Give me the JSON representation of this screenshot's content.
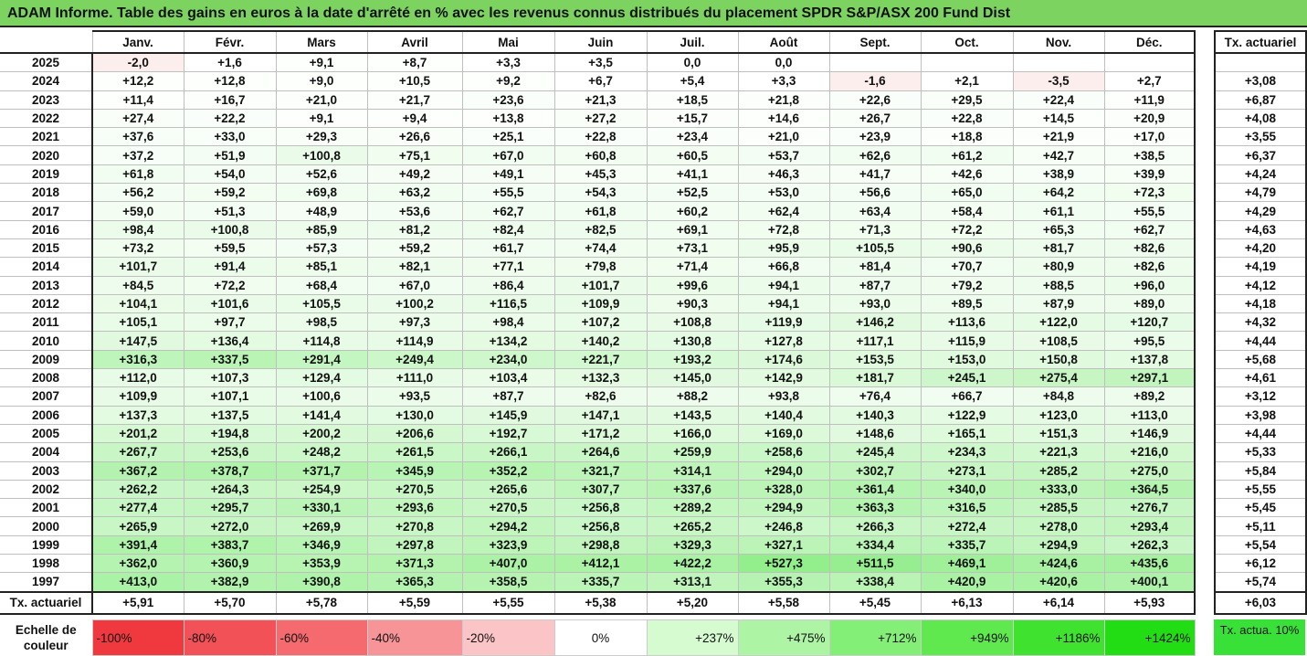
{
  "title": "ADAM Informe. Table des gains en euros à la date d'arrêté en % avec les revenus connus distribués du placement SPDR S&P/ASX 200 Fund Dist",
  "months": [
    "Janv.",
    "Févr.",
    "Mars",
    "Avril",
    "Mai",
    "Juin",
    "Juil.",
    "Août",
    "Sept.",
    "Oct.",
    "Nov.",
    "Déc."
  ],
  "side_header": "Tx. actuariel",
  "rows": [
    {
      "year": "2025",
      "values": [
        "-2,0",
        "+1,6",
        "+9,1",
        "+8,7",
        "+3,3",
        "+3,5",
        "0,0",
        "0,0",
        "",
        "",
        "",
        ""
      ],
      "tx": ""
    },
    {
      "year": "2024",
      "values": [
        "+12,2",
        "+12,8",
        "+9,0",
        "+10,5",
        "+9,2",
        "+6,7",
        "+5,4",
        "+3,3",
        "-1,6",
        "+2,1",
        "-3,5",
        "+2,7"
      ],
      "tx": "+3,08"
    },
    {
      "year": "2023",
      "values": [
        "+11,4",
        "+16,7",
        "+21,0",
        "+21,7",
        "+23,6",
        "+21,3",
        "+18,5",
        "+21,8",
        "+22,6",
        "+29,5",
        "+22,4",
        "+11,9"
      ],
      "tx": "+6,87"
    },
    {
      "year": "2022",
      "values": [
        "+27,4",
        "+22,2",
        "+9,1",
        "+9,4",
        "+13,8",
        "+27,2",
        "+15,7",
        "+14,6",
        "+26,7",
        "+22,8",
        "+14,5",
        "+20,9"
      ],
      "tx": "+4,08"
    },
    {
      "year": "2021",
      "values": [
        "+37,6",
        "+33,0",
        "+29,3",
        "+26,6",
        "+25,1",
        "+22,8",
        "+23,4",
        "+21,0",
        "+23,9",
        "+18,8",
        "+21,9",
        "+17,0"
      ],
      "tx": "+3,55"
    },
    {
      "year": "2020",
      "values": [
        "+37,2",
        "+51,9",
        "+100,8",
        "+75,1",
        "+67,0",
        "+60,8",
        "+60,5",
        "+53,7",
        "+62,6",
        "+61,2",
        "+42,7",
        "+38,5"
      ],
      "tx": "+6,37"
    },
    {
      "year": "2019",
      "values": [
        "+61,8",
        "+54,0",
        "+52,6",
        "+49,2",
        "+49,1",
        "+45,3",
        "+41,1",
        "+46,3",
        "+41,7",
        "+42,6",
        "+38,9",
        "+39,9"
      ],
      "tx": "+4,24"
    },
    {
      "year": "2018",
      "values": [
        "+56,2",
        "+59,2",
        "+69,8",
        "+63,2",
        "+55,5",
        "+54,3",
        "+52,5",
        "+53,0",
        "+56,6",
        "+65,0",
        "+64,2",
        "+72,3"
      ],
      "tx": "+4,79"
    },
    {
      "year": "2017",
      "values": [
        "+59,0",
        "+51,3",
        "+48,9",
        "+53,6",
        "+62,7",
        "+61,8",
        "+60,2",
        "+62,4",
        "+63,4",
        "+58,4",
        "+61,1",
        "+55,5"
      ],
      "tx": "+4,29"
    },
    {
      "year": "2016",
      "values": [
        "+98,4",
        "+100,8",
        "+85,9",
        "+81,2",
        "+82,4",
        "+82,5",
        "+69,1",
        "+72,8",
        "+71,3",
        "+72,2",
        "+65,3",
        "+62,7"
      ],
      "tx": "+4,63"
    },
    {
      "year": "2015",
      "values": [
        "+73,2",
        "+59,5",
        "+57,3",
        "+59,2",
        "+61,7",
        "+74,4",
        "+73,1",
        "+95,9",
        "+105,5",
        "+90,6",
        "+81,7",
        "+82,6"
      ],
      "tx": "+4,20"
    },
    {
      "year": "2014",
      "values": [
        "+101,7",
        "+91,4",
        "+85,1",
        "+82,1",
        "+77,1",
        "+79,8",
        "+71,4",
        "+66,8",
        "+81,4",
        "+70,7",
        "+80,9",
        "+82,6"
      ],
      "tx": "+4,19"
    },
    {
      "year": "2013",
      "values": [
        "+84,5",
        "+72,2",
        "+68,4",
        "+67,0",
        "+86,4",
        "+101,7",
        "+99,6",
        "+94,1",
        "+87,7",
        "+79,2",
        "+88,5",
        "+96,0"
      ],
      "tx": "+4,12"
    },
    {
      "year": "2012",
      "values": [
        "+104,1",
        "+101,6",
        "+105,5",
        "+100,2",
        "+116,5",
        "+109,9",
        "+90,3",
        "+94,1",
        "+93,0",
        "+89,5",
        "+87,9",
        "+89,0"
      ],
      "tx": "+4,18"
    },
    {
      "year": "2011",
      "values": [
        "+105,1",
        "+97,7",
        "+98,5",
        "+97,3",
        "+98,4",
        "+107,2",
        "+108,8",
        "+119,9",
        "+146,2",
        "+113,6",
        "+122,0",
        "+120,7"
      ],
      "tx": "+4,32"
    },
    {
      "year": "2010",
      "values": [
        "+147,5",
        "+136,4",
        "+114,8",
        "+114,9",
        "+134,2",
        "+140,2",
        "+130,8",
        "+127,8",
        "+117,1",
        "+115,9",
        "+108,5",
        "+95,5"
      ],
      "tx": "+4,44"
    },
    {
      "year": "2009",
      "values": [
        "+316,3",
        "+337,5",
        "+291,4",
        "+249,4",
        "+234,0",
        "+221,7",
        "+193,2",
        "+174,6",
        "+153,5",
        "+153,0",
        "+150,8",
        "+137,8"
      ],
      "tx": "+5,68"
    },
    {
      "year": "2008",
      "values": [
        "+112,0",
        "+107,3",
        "+129,4",
        "+111,0",
        "+103,4",
        "+132,3",
        "+145,0",
        "+142,9",
        "+181,7",
        "+245,1",
        "+275,4",
        "+297,1"
      ],
      "tx": "+4,61"
    },
    {
      "year": "2007",
      "values": [
        "+109,9",
        "+107,1",
        "+100,6",
        "+93,5",
        "+87,7",
        "+82,6",
        "+88,2",
        "+93,8",
        "+76,4",
        "+66,7",
        "+84,8",
        "+89,2"
      ],
      "tx": "+3,12"
    },
    {
      "year": "2006",
      "values": [
        "+137,3",
        "+137,5",
        "+141,4",
        "+130,0",
        "+145,9",
        "+147,1",
        "+143,5",
        "+140,4",
        "+140,3",
        "+122,9",
        "+123,0",
        "+113,0"
      ],
      "tx": "+3,98"
    },
    {
      "year": "2005",
      "values": [
        "+201,2",
        "+194,8",
        "+200,2",
        "+206,6",
        "+192,7",
        "+171,2",
        "+166,0",
        "+169,0",
        "+148,6",
        "+165,1",
        "+151,3",
        "+146,9"
      ],
      "tx": "+4,44"
    },
    {
      "year": "2004",
      "values": [
        "+267,7",
        "+253,6",
        "+248,2",
        "+261,5",
        "+266,1",
        "+264,6",
        "+259,9",
        "+258,6",
        "+245,4",
        "+234,3",
        "+221,3",
        "+216,0"
      ],
      "tx": "+5,33"
    },
    {
      "year": "2003",
      "values": [
        "+367,2",
        "+378,7",
        "+371,7",
        "+345,9",
        "+352,2",
        "+321,7",
        "+314,1",
        "+294,0",
        "+302,7",
        "+273,1",
        "+285,2",
        "+275,0"
      ],
      "tx": "+5,84"
    },
    {
      "year": "2002",
      "values": [
        "+262,2",
        "+264,3",
        "+254,9",
        "+270,5",
        "+265,6",
        "+307,7",
        "+337,6",
        "+328,0",
        "+361,4",
        "+340,0",
        "+333,0",
        "+364,5"
      ],
      "tx": "+5,55"
    },
    {
      "year": "2001",
      "values": [
        "+277,4",
        "+295,7",
        "+330,1",
        "+293,6",
        "+270,5",
        "+256,8",
        "+289,2",
        "+294,9",
        "+363,3",
        "+316,5",
        "+285,5",
        "+276,7"
      ],
      "tx": "+5,45"
    },
    {
      "year": "2000",
      "values": [
        "+265,9",
        "+272,0",
        "+269,9",
        "+270,8",
        "+294,2",
        "+256,8",
        "+265,2",
        "+246,8",
        "+266,3",
        "+272,4",
        "+278,0",
        "+293,4"
      ],
      "tx": "+5,11"
    },
    {
      "year": "1999",
      "values": [
        "+391,4",
        "+383,7",
        "+346,9",
        "+297,8",
        "+323,9",
        "+298,8",
        "+329,3",
        "+327,1",
        "+334,4",
        "+335,7",
        "+294,9",
        "+262,3"
      ],
      "tx": "+5,54"
    },
    {
      "year": "1998",
      "values": [
        "+362,0",
        "+360,9",
        "+353,9",
        "+371,3",
        "+407,0",
        "+412,1",
        "+422,2",
        "+527,3",
        "+511,5",
        "+469,1",
        "+424,6",
        "+435,6"
      ],
      "tx": "+6,12"
    },
    {
      "year": "1997",
      "values": [
        "+413,0",
        "+382,9",
        "+390,8",
        "+365,3",
        "+358,5",
        "+335,7",
        "+313,1",
        "+355,3",
        "+338,4",
        "+420,9",
        "+420,6",
        "+400,1"
      ],
      "tx": "+5,74"
    }
  ],
  "footer": {
    "label": "Tx. actuariel",
    "values": [
      "+5,91",
      "+5,70",
      "+5,78",
      "+5,59",
      "+5,55",
      "+5,38",
      "+5,20",
      "+5,58",
      "+5,45",
      "+6,13",
      "+6,14",
      "+5,93"
    ],
    "tx": "+6,03"
  },
  "scale": {
    "label": "Echelle de couleur",
    "items": [
      {
        "text": "-100%",
        "color": "#f0393f",
        "align": "neg"
      },
      {
        "text": "-80%",
        "color": "#f25257",
        "align": "neg"
      },
      {
        "text": "-60%",
        "color": "#f46a6e",
        "align": "neg"
      },
      {
        "text": "-40%",
        "color": "#f79498",
        "align": "neg"
      },
      {
        "text": "-20%",
        "color": "#fbc4c6",
        "align": "neg"
      },
      {
        "text": "0%",
        "color": "#ffffff",
        "align": "center"
      },
      {
        "text": "+237%",
        "color": "#d6fbd1",
        "align": "pos"
      },
      {
        "text": "+475%",
        "color": "#adf5a4",
        "align": "pos"
      },
      {
        "text": "+712%",
        "color": "#84ef77",
        "align": "pos"
      },
      {
        "text": "+949%",
        "color": "#5fe94f",
        "align": "pos"
      },
      {
        "text": "+1186%",
        "color": "#3fe22e",
        "align": "pos"
      },
      {
        "text": "+1424%",
        "color": "#22dc14",
        "align": "pos"
      }
    ],
    "side": "Tx. actua. 10%",
    "side_color": "#38e038"
  }
}
